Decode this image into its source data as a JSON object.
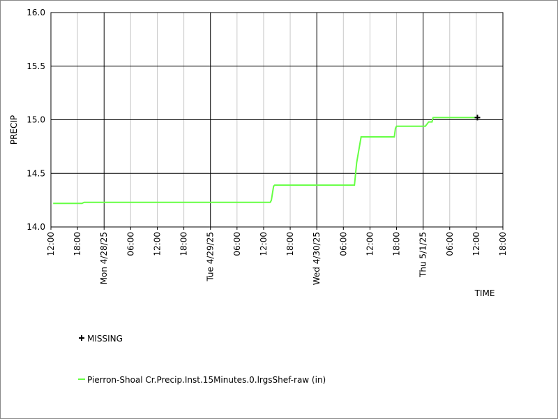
{
  "chart_data": {
    "type": "line",
    "x_label": "TIME",
    "y_label": "PRECIP",
    "grid": true,
    "xlim": [
      "2025-04-27T12:00",
      "2025-05-01T18:00"
    ],
    "xticks": [
      {
        "value": "2025-04-27T12:00",
        "label": "12:00"
      },
      {
        "value": "2025-04-27T18:00",
        "label": "18:00"
      },
      {
        "value": "2025-04-28T00:00",
        "label": "Mon 4/28/25"
      },
      {
        "value": "2025-04-28T06:00",
        "label": "06:00"
      },
      {
        "value": "2025-04-28T12:00",
        "label": "12:00"
      },
      {
        "value": "2025-04-28T18:00",
        "label": "18:00"
      },
      {
        "value": "2025-04-29T00:00",
        "label": "Tue 4/29/25"
      },
      {
        "value": "2025-04-29T06:00",
        "label": "06:00"
      },
      {
        "value": "2025-04-29T12:00",
        "label": "12:00"
      },
      {
        "value": "2025-04-29T18:00",
        "label": "18:00"
      },
      {
        "value": "2025-04-30T00:00",
        "label": "Wed 4/30/25"
      },
      {
        "value": "2025-04-30T06:00",
        "label": "06:00"
      },
      {
        "value": "2025-04-30T12:00",
        "label": "12:00"
      },
      {
        "value": "2025-04-30T18:00",
        "label": "18:00"
      },
      {
        "value": "2025-05-01T00:00",
        "label": "Thu 5/1/25"
      },
      {
        "value": "2025-05-01T06:00",
        "label": "06:00"
      },
      {
        "value": "2025-05-01T12:00",
        "label": "12:00"
      },
      {
        "value": "2025-05-01T18:00",
        "label": "18:00"
      }
    ],
    "ylim": [
      14.0,
      16.0
    ],
    "yticks": [
      {
        "value": 14.0,
        "label": "14.0"
      },
      {
        "value": 14.5,
        "label": "14.5"
      },
      {
        "value": 15.0,
        "label": "15.0"
      },
      {
        "value": 15.5,
        "label": "15.5"
      },
      {
        "value": 16.0,
        "label": "16.0"
      }
    ],
    "series": [
      {
        "name": "Pierron-Shoal Cr.Precip.Inst.15Minutes.0.lrgsShef-raw (in)",
        "color": "#66ff44",
        "x": [
          "2025-04-27T12:30",
          "2025-04-27T19:00",
          "2025-04-27T19:30",
          "2025-04-29T13:30",
          "2025-04-29T13:45",
          "2025-04-29T14:15",
          "2025-04-29T14:30",
          "2025-04-30T08:30",
          "2025-04-30T09:00",
          "2025-04-30T09:30",
          "2025-04-30T10:00",
          "2025-04-30T17:30",
          "2025-04-30T17:45",
          "2025-04-30T18:00",
          "2025-05-01T00:30",
          "2025-05-01T01:15",
          "2025-05-01T02:00",
          "2025-05-01T02:15",
          "2025-05-01T12:15"
        ],
        "values": [
          14.22,
          14.22,
          14.23,
          14.23,
          14.25,
          14.38,
          14.39,
          14.39,
          14.6,
          14.72,
          14.84,
          14.84,
          14.92,
          14.94,
          14.94,
          14.98,
          14.98,
          15.02,
          15.02
        ]
      }
    ],
    "missing": {
      "name": "MISSING",
      "color": "#000000",
      "x": [
        "2025-05-01T12:15"
      ],
      "values": [
        15.02
      ]
    }
  }
}
